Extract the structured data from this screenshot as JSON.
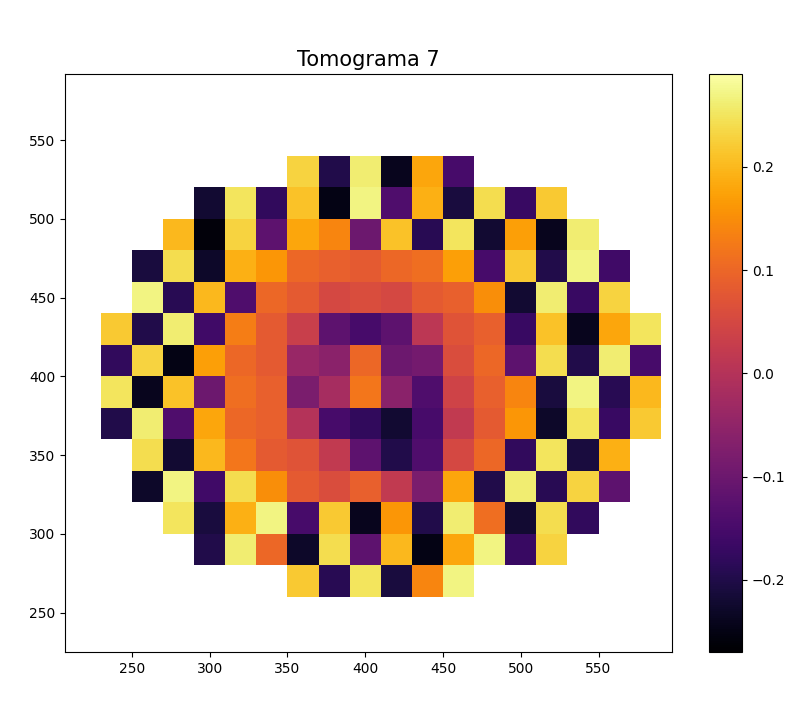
{
  "chart_data": {
    "type": "heatmap",
    "title": "Tomograma 7",
    "color": "inferno",
    "xlim": [
      207,
      597
    ],
    "ylim": [
      225,
      592
    ],
    "xticks": [
      250,
      300,
      350,
      400,
      450,
      500,
      550
    ],
    "yticks": [
      250,
      300,
      350,
      400,
      450,
      500,
      550
    ],
    "x_edges": [
      230,
      250,
      270,
      290,
      310,
      330,
      350,
      370,
      390,
      410,
      430,
      450,
      470,
      490,
      510,
      530,
      550,
      570,
      590
    ],
    "y_edges": [
      260,
      280,
      300,
      320,
      340,
      360,
      380,
      400,
      420,
      440,
      460,
      480,
      500,
      520,
      540
    ],
    "cells": [
      [
        null,
        null,
        null,
        null,
        null,
        null,
        0.22,
        -0.19,
        0.25,
        -0.21,
        0.14,
        0.27,
        null,
        null,
        null,
        null,
        null,
        null
      ],
      [
        null,
        null,
        null,
        -0.2,
        0.26,
        0.1,
        -0.23,
        0.24,
        -0.12,
        0.2,
        -0.25,
        0.18,
        0.27,
        -0.17,
        0.23,
        null,
        null,
        null
      ],
      [
        null,
        null,
        0.25,
        -0.21,
        0.19,
        0.27,
        -0.15,
        0.22,
        -0.24,
        0.16,
        -0.2,
        0.26,
        0.11,
        -0.22,
        0.24,
        -0.18,
        null,
        null
      ],
      [
        null,
        -0.23,
        0.27,
        -0.16,
        0.24,
        0.15,
        0.08,
        0.06,
        0.09,
        0.02,
        -0.08,
        0.18,
        -0.2,
        0.26,
        -0.19,
        0.23,
        -0.12,
        null
      ],
      [
        null,
        0.24,
        -0.22,
        0.2,
        0.12,
        0.08,
        0.07,
        0.02,
        -0.12,
        -0.2,
        -0.14,
        0.05,
        0.1,
        -0.18,
        0.25,
        -0.21,
        0.19,
        null
      ],
      [
        -0.2,
        0.26,
        -0.14,
        0.18,
        0.1,
        0.09,
        0.0,
        -0.15,
        -0.18,
        -0.22,
        -0.15,
        0.02,
        0.08,
        0.16,
        -0.23,
        0.25,
        -0.17,
        0.22
      ],
      [
        0.25,
        -0.24,
        0.21,
        -0.1,
        0.11,
        0.09,
        -0.08,
        -0.02,
        0.12,
        -0.06,
        -0.14,
        0.04,
        0.09,
        0.14,
        -0.21,
        0.27,
        -0.19,
        0.2
      ],
      [
        -0.18,
        0.23,
        -0.25,
        0.17,
        0.1,
        0.08,
        -0.04,
        -0.06,
        0.1,
        -0.1,
        -0.09,
        0.06,
        0.1,
        -0.12,
        0.24,
        -0.2,
        0.26,
        -0.15
      ],
      [
        0.22,
        -0.2,
        0.26,
        -0.16,
        0.13,
        0.08,
        0.03,
        -0.12,
        -0.15,
        -0.12,
        0.01,
        0.07,
        0.09,
        -0.17,
        0.21,
        -0.24,
        0.18,
        0.25
      ],
      [
        null,
        0.27,
        -0.19,
        0.2,
        -0.14,
        0.1,
        0.08,
        0.05,
        0.06,
        0.05,
        0.08,
        0.09,
        0.15,
        -0.22,
        0.26,
        -0.17,
        0.23,
        null
      ],
      [
        null,
        -0.21,
        0.24,
        -0.23,
        0.19,
        0.16,
        0.1,
        0.09,
        0.08,
        0.1,
        0.11,
        0.17,
        -0.15,
        0.22,
        -0.2,
        0.27,
        -0.16,
        null
      ],
      [
        null,
        null,
        0.2,
        -0.26,
        0.23,
        -0.12,
        0.18,
        0.14,
        -0.1,
        0.21,
        -0.19,
        0.25,
        -0.22,
        0.17,
        -0.24,
        0.26,
        null,
        null
      ],
      [
        null,
        null,
        null,
        -0.22,
        0.25,
        -0.18,
        0.21,
        -0.25,
        0.27,
        -0.14,
        0.19,
        -0.21,
        0.24,
        -0.17,
        0.22,
        null,
        null,
        null
      ],
      [
        null,
        null,
        null,
        null,
        null,
        null,
        0.23,
        -0.2,
        0.26,
        -0.24,
        0.18,
        -0.15,
        null,
        null,
        null,
        null,
        null,
        null
      ]
    ],
    "colorbar": {
      "lim": [
        -0.27,
        0.29
      ],
      "ticks": [
        {
          "value": -0.2,
          "label": "−0.2"
        },
        {
          "value": -0.1,
          "label": "−0.1"
        },
        0.0,
        0.1,
        0.2
      ]
    }
  }
}
